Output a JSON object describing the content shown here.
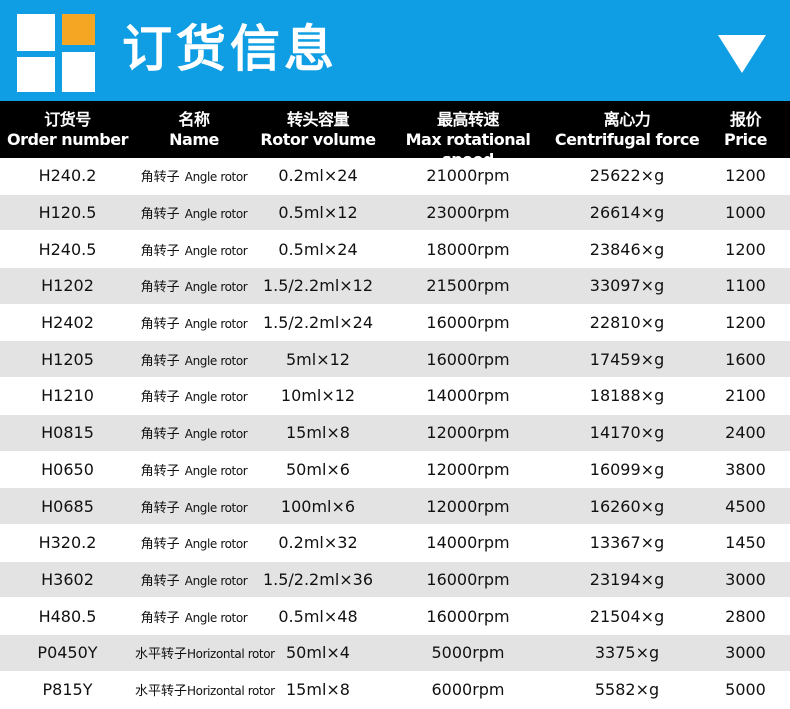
{
  "header": {
    "title": "订货信息"
  },
  "table": {
    "columns": [
      {
        "zh": "订货号",
        "en": "Order number"
      },
      {
        "zh": "名称",
        "en": "Name"
      },
      {
        "zh": "转头容量",
        "en": "Rotor volume"
      },
      {
        "zh": "最高转速",
        "en": "Max rotational speed"
      },
      {
        "zh": "离心力",
        "en": "Centrifugal force"
      },
      {
        "zh": "报价",
        "en": "Price"
      }
    ],
    "rows": [
      [
        "H240.2",
        {
          "zh": "角转子",
          "en": "Angle rotor"
        },
        "0.2ml×24",
        "21000rpm",
        "25622×g",
        "1200"
      ],
      [
        "H120.5",
        {
          "zh": "角转子",
          "en": "Angle rotor"
        },
        "0.5ml×12",
        "23000rpm",
        "26614×g",
        "1000"
      ],
      [
        "H240.5",
        {
          "zh": "角转子",
          "en": "Angle rotor"
        },
        "0.5ml×24",
        "18000rpm",
        "23846×g",
        "1200"
      ],
      [
        "H1202",
        {
          "zh": "角转子",
          "en": "Angle rotor"
        },
        "1.5/2.2ml×12",
        "21500rpm",
        "33097×g",
        "1100"
      ],
      [
        "H2402",
        {
          "zh": "角转子",
          "en": "Angle rotor"
        },
        "1.5/2.2ml×24",
        "16000rpm",
        "22810×g",
        "1200"
      ],
      [
        "H1205",
        {
          "zh": "角转子",
          "en": "Angle rotor"
        },
        "5ml×12",
        "16000rpm",
        "17459×g",
        "1600"
      ],
      [
        "H1210",
        {
          "zh": "角转子",
          "en": "Angle rotor"
        },
        "10ml×12",
        "14000rpm",
        "18188×g",
        "2100"
      ],
      [
        "H0815",
        {
          "zh": "角转子",
          "en": "Angle rotor"
        },
        "15ml×8",
        "12000rpm",
        "14170×g",
        "2400"
      ],
      [
        "H0650",
        {
          "zh": "角转子",
          "en": "Angle rotor"
        },
        "50ml×6",
        "12000rpm",
        "16099×g",
        "3800"
      ],
      [
        "H0685",
        {
          "zh": "角转子",
          "en": "Angle rotor"
        },
        "100ml×6",
        "12000rpm",
        "16260×g",
        "4500"
      ],
      [
        "H320.2",
        {
          "zh": "角转子",
          "en": "Angle rotor"
        },
        "0.2ml×32",
        "14000rpm",
        "13367×g",
        "1450"
      ],
      [
        "H3602",
        {
          "zh": "角转子",
          "en": "Angle rotor"
        },
        "1.5/2.2ml×36",
        "16000rpm",
        "23194×g",
        "3000"
      ],
      [
        "H480.5",
        {
          "zh": "角转子",
          "en": "Angle rotor"
        },
        "0.5ml×48",
        "16000rpm",
        "21504×g",
        "2800"
      ],
      [
        "P0450Y",
        {
          "zh": "水平转子",
          "en": "Horizontal rotor"
        },
        "50ml×4",
        "5000rpm",
        "3375×g",
        "3000"
      ],
      [
        "P815Y",
        {
          "zh": "水平转子",
          "en": "Horizontal rotor"
        },
        "15ml×8",
        "6000rpm",
        "5582×g",
        "5000"
      ]
    ]
  }
}
